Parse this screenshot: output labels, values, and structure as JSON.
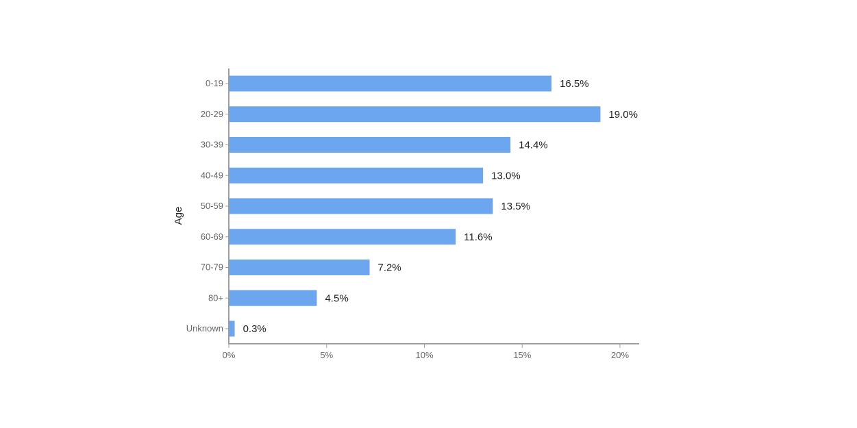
{
  "chart_data": {
    "type": "bar",
    "orientation": "horizontal",
    "categories": [
      "0-19",
      "20-29",
      "30-39",
      "40-49",
      "50-59",
      "60-69",
      "70-79",
      "80+",
      "Unknown"
    ],
    "values": [
      16.5,
      19.0,
      14.4,
      13.0,
      13.5,
      11.6,
      7.2,
      4.5,
      0.3
    ],
    "value_labels": [
      "16.5%",
      "19.0%",
      "14.4%",
      "13.0%",
      "13.5%",
      "11.6%",
      "7.2%",
      "4.5%",
      "0.3%"
    ],
    "title": "",
    "xlabel": "",
    "ylabel": "Age",
    "xlim": [
      0,
      21
    ],
    "x_ticks": [
      0,
      5,
      10,
      15,
      20
    ],
    "x_tick_labels": [
      "0%",
      "5%",
      "10%",
      "15%",
      "20%"
    ],
    "grid": false,
    "legend": "none",
    "bar_color": "#6ca6ef",
    "axis_color": "#9e9e9e"
  }
}
